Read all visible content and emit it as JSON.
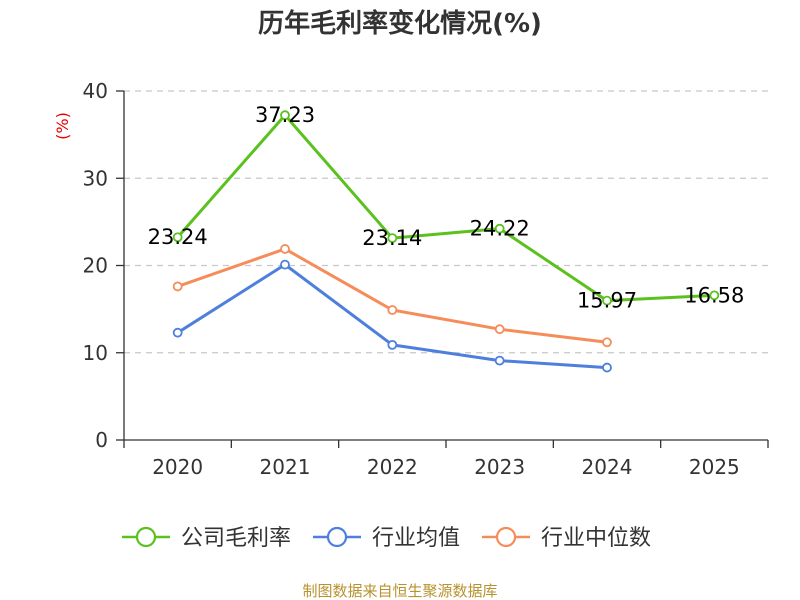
{
  "chart_data": {
    "type": "line",
    "title": "历年毛利率变化情况(%)",
    "ylabel": "(%)",
    "categories": [
      "2020",
      "2021",
      "2022",
      "2023",
      "2024",
      "2025"
    ],
    "ylim": [
      0,
      40
    ],
    "yticks": [
      0,
      10,
      20,
      30,
      40
    ],
    "grid": true,
    "legend_position": "bottom",
    "series": [
      {
        "name": "公司毛利率",
        "color": "#5ac11f",
        "values": [
          23.24,
          37.23,
          23.14,
          24.22,
          15.97,
          16.58
        ],
        "labels": [
          "23.24",
          "37.23",
          "23.14",
          "24.22",
          "15.97",
          "16.58"
        ]
      },
      {
        "name": "行业均值",
        "color": "#4e7fdd",
        "values": [
          12.3,
          20.1,
          10.9,
          9.1,
          8.3,
          null
        ]
      },
      {
        "name": "行业中位数",
        "color": "#f58c59",
        "values": [
          17.6,
          21.9,
          14.9,
          12.7,
          11.2,
          null
        ]
      }
    ],
    "source": "制图数据来自恒生聚源数据库"
  }
}
